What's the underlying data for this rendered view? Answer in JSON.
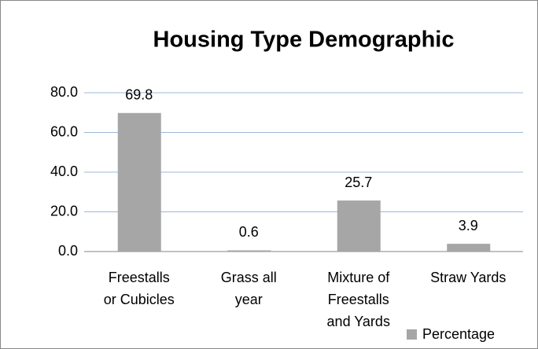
{
  "chart_data": {
    "type": "bar",
    "title": "Housing Type Demographic",
    "categories": [
      "Freestalls\nor Cubicles",
      "Grass all\nyear",
      "Mixture of\nFreestalls\nand Yards",
      "Straw Yards"
    ],
    "series": [
      {
        "name": "Percentage",
        "color": "#a6a6a6",
        "values": [
          69.8,
          0.6,
          25.7,
          3.9
        ]
      }
    ],
    "ylim": [
      0,
      80
    ],
    "yticks": [
      {
        "value": 0,
        "label": "0.0"
      },
      {
        "value": 20,
        "label": "20.0"
      },
      {
        "value": 40,
        "label": "40.0"
      },
      {
        "value": 60,
        "label": "60.0"
      },
      {
        "value": 80,
        "label": "80.0"
      }
    ],
    "grid": true,
    "legend": "bottom-right"
  }
}
